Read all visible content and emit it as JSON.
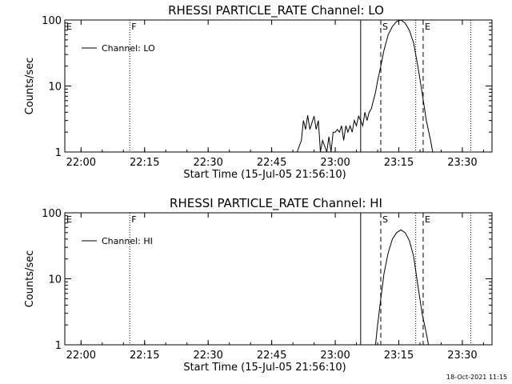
{
  "footer": {
    "timestamp": "18-Oct-2021 11:15"
  },
  "chart_data": [
    {
      "type": "line",
      "title": "RHESSI PARTICLE_RATE Channel: LO",
      "xlabel": "Start Time (15-Jul-05 21:56:10)",
      "ylabel": "Counts/sec",
      "yscale": "log",
      "xlim": [
        "21:56:10",
        "23:37:00"
      ],
      "ylim": [
        1,
        100
      ],
      "x_ticks": [
        "22:00",
        "22:15",
        "22:30",
        "22:45",
        "23:00",
        "23:15",
        "23:30"
      ],
      "y_ticks": [
        "1",
        "10",
        "100"
      ],
      "legend": {
        "position": "top-left",
        "entries": [
          "Channel: LO"
        ]
      },
      "markers": [
        {
          "label": "E",
          "time": "21:56:10",
          "style": "none"
        },
        {
          "label": "F",
          "time": "22:11:30",
          "style": "dotted"
        },
        {
          "label": "",
          "time": "23:06:00",
          "style": "solid"
        },
        {
          "label": "S",
          "time": "23:10:45",
          "style": "dashed"
        },
        {
          "label": "",
          "time": "23:19:00",
          "style": "dotted"
        },
        {
          "label": "E",
          "time": "23:20:45",
          "style": "dashed"
        },
        {
          "label": "",
          "time": "23:32:00",
          "style": "dotted"
        }
      ],
      "series": [
        {
          "name": "Channel: LO",
          "points": [
            [
              "22:51:00",
              1.0
            ],
            [
              "22:52:00",
              1.5
            ],
            [
              "22:52:30",
              3.0
            ],
            [
              "22:53:00",
              2.2
            ],
            [
              "22:53:30",
              3.6
            ],
            [
              "22:54:00",
              2.2
            ],
            [
              "22:55:00",
              3.5
            ],
            [
              "22:55:30",
              2.2
            ],
            [
              "22:56:00",
              3.0
            ],
            [
              "22:56:20",
              1.5
            ],
            [
              "22:56:30",
              1.0
            ],
            [
              "22:57:00",
              1.5
            ],
            [
              "22:58:00",
              1.0
            ],
            [
              "22:58:30",
              1.7
            ],
            [
              "22:59:00",
              1.0
            ],
            [
              "22:59:30",
              2.0
            ],
            [
              "23:00:00",
              2.0
            ],
            [
              "23:00:30",
              2.2
            ],
            [
              "23:01:00",
              2.0
            ],
            [
              "23:01:30",
              2.5
            ],
            [
              "23:02:00",
              1.5
            ],
            [
              "23:02:30",
              2.5
            ],
            [
              "23:03:00",
              2.0
            ],
            [
              "23:03:30",
              2.5
            ],
            [
              "23:04:00",
              2.0
            ],
            [
              "23:04:30",
              3.0
            ],
            [
              "23:05:00",
              2.5
            ],
            [
              "23:05:30",
              3.5
            ],
            [
              "23:06:00",
              3.0
            ],
            [
              "23:06:30",
              2.5
            ],
            [
              "23:07:00",
              4.0
            ],
            [
              "23:07:30",
              3.0
            ],
            [
              "23:08:00",
              4.0
            ],
            [
              "23:08:30",
              4.5
            ],
            [
              "23:09:00",
              6.0
            ],
            [
              "23:09:30",
              8.0
            ],
            [
              "23:10:00",
              12.0
            ],
            [
              "23:10:45",
              20.0
            ],
            [
              "23:11:30",
              35.0
            ],
            [
              "23:12:30",
              60.0
            ],
            [
              "23:13:30",
              80.0
            ],
            [
              "23:14:30",
              95.0
            ],
            [
              "23:15:30",
              100.0
            ],
            [
              "23:16:30",
              90.0
            ],
            [
              "23:17:30",
              70.0
            ],
            [
              "23:18:30",
              45.0
            ],
            [
              "23:19:30",
              20.0
            ],
            [
              "23:20:30",
              8.0
            ],
            [
              "23:21:30",
              3.0
            ],
            [
              "23:22:30",
              1.5
            ],
            [
              "23:23:00",
              1.0
            ]
          ]
        }
      ]
    },
    {
      "type": "line",
      "title": "RHESSI PARTICLE_RATE Channel: HI",
      "xlabel": "Start Time (15-Jul-05 21:56:10)",
      "ylabel": "Counts/sec",
      "yscale": "log",
      "xlim": [
        "21:56:10",
        "23:37:00"
      ],
      "ylim": [
        1,
        100
      ],
      "x_ticks": [
        "22:00",
        "22:15",
        "22:30",
        "22:45",
        "23:00",
        "23:15",
        "23:30"
      ],
      "y_ticks": [
        "1",
        "10",
        "100"
      ],
      "legend": {
        "position": "top-left",
        "entries": [
          "Channel: HI"
        ]
      },
      "markers": [
        {
          "label": "E",
          "time": "21:56:10",
          "style": "none"
        },
        {
          "label": "F",
          "time": "22:11:30",
          "style": "dotted"
        },
        {
          "label": "",
          "time": "23:06:00",
          "style": "solid"
        },
        {
          "label": "S",
          "time": "23:10:45",
          "style": "dashed"
        },
        {
          "label": "",
          "time": "23:19:00",
          "style": "dotted"
        },
        {
          "label": "E",
          "time": "23:20:45",
          "style": "dashed"
        },
        {
          "label": "",
          "time": "23:32:00",
          "style": "dotted"
        }
      ],
      "series": [
        {
          "name": "Channel: HI",
          "points": [
            [
              "23:09:30",
              1.0
            ],
            [
              "23:10:00",
              2.0
            ],
            [
              "23:10:45",
              5.0
            ],
            [
              "23:11:30",
              12.0
            ],
            [
              "23:12:30",
              25.0
            ],
            [
              "23:13:30",
              40.0
            ],
            [
              "23:14:30",
              50.0
            ],
            [
              "23:15:30",
              55.0
            ],
            [
              "23:16:30",
              50.0
            ],
            [
              "23:17:30",
              38.0
            ],
            [
              "23:18:30",
              22.0
            ],
            [
              "23:19:30",
              8.0
            ],
            [
              "23:20:30",
              3.0
            ],
            [
              "23:21:30",
              1.5
            ],
            [
              "23:22:00",
              1.0
            ]
          ]
        }
      ]
    }
  ]
}
